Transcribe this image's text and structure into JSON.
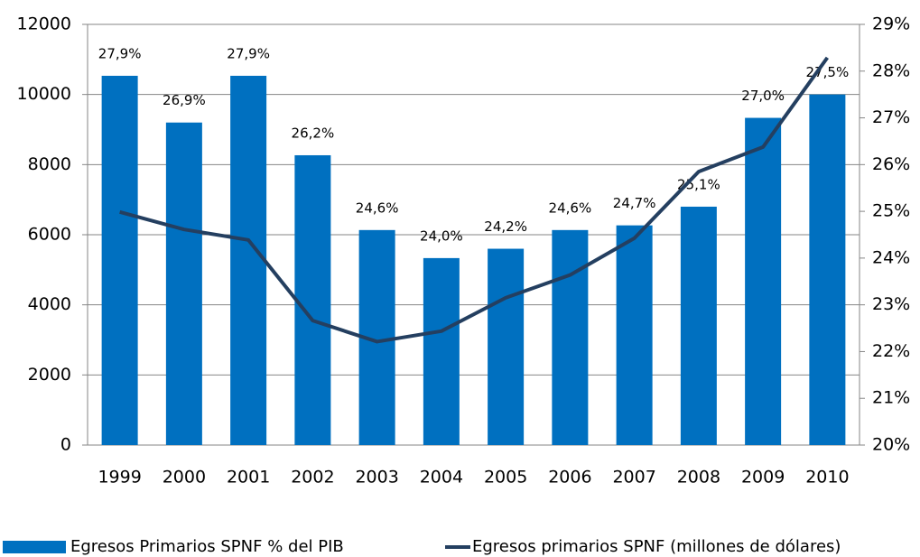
{
  "chart_data": {
    "type": "bar",
    "categories": [
      "1999",
      "2000",
      "2001",
      "2002",
      "2003",
      "2004",
      "2005",
      "2006",
      "2007",
      "2008",
      "2009",
      "2010"
    ],
    "series": [
      {
        "name": "Egresos Primarios SPNF % del PIB",
        "type": "bar",
        "axis": "y2",
        "color": "#0070c0",
        "values": [
          27.9,
          26.9,
          27.9,
          26.2,
          24.6,
          24.0,
          24.2,
          24.6,
          24.7,
          25.1,
          27.0,
          27.5
        ],
        "value_labels": [
          "27,9%",
          "26,9%",
          "27,9%",
          "26,2%",
          "24,6%",
          "24,0%",
          "24,2%",
          "24,6%",
          "24,7%",
          "25,1%",
          "27,0%",
          "27,5%"
        ]
      },
      {
        "name": "Egresos primarios SPNF (millones de dólares)",
        "type": "line",
        "axis": "y",
        "color": "#243f60",
        "values": [
          6650,
          6150,
          5850,
          3550,
          2950,
          3250,
          4200,
          4850,
          5900,
          7800,
          8500,
          11050
        ]
      }
    ],
    "ylim": [
      0,
      12000
    ],
    "yticks": [
      0,
      2000,
      4000,
      6000,
      8000,
      10000,
      12000
    ],
    "y2lim": [
      20,
      29
    ],
    "y2ticks": [
      {
        "value": 20,
        "label": "20%"
      },
      {
        "value": 21,
        "label": "21%"
      },
      {
        "value": 22,
        "label": "22%"
      },
      {
        "value": 23,
        "label": "23%"
      },
      {
        "value": 24,
        "label": "24%"
      },
      {
        "value": 25,
        "label": "25%"
      },
      {
        "value": 26,
        "label": "26%"
      },
      {
        "value": 27,
        "label": "27%"
      },
      {
        "value": 28,
        "label": "28%"
      },
      {
        "value": 29,
        "label": "29%"
      }
    ],
    "grid": true,
    "legend": "bottom"
  }
}
